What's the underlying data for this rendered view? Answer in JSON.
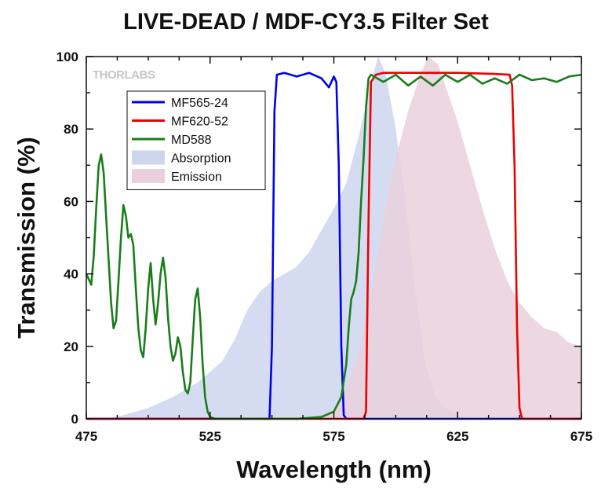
{
  "chart_data": {
    "type": "line",
    "title": "LIVE-DEAD / MDF-CY3.5 Filter Set",
    "xlabel": "Wavelength (nm)",
    "ylabel": "Transmission (%)",
    "xlim": [
      475,
      675
    ],
    "ylim": [
      0,
      100
    ],
    "x_ticks": [
      "475",
      "525",
      "575",
      "625",
      "675"
    ],
    "y_ticks": [
      "0",
      "20",
      "40",
      "60",
      "80",
      "100"
    ],
    "grid": false,
    "legend_position": "upper-left",
    "watermark": "THORLABS",
    "series": [
      {
        "name": "MF565-24",
        "style": "line",
        "color": "#0000ee",
        "points": [
          [
            475,
            0
          ],
          [
            549,
            0
          ],
          [
            550,
            20
          ],
          [
            551,
            85
          ],
          [
            552,
            95
          ],
          [
            555,
            95.5
          ],
          [
            560,
            94.5
          ],
          [
            565,
            95.5
          ],
          [
            570,
            94
          ],
          [
            573,
            91.5
          ],
          [
            575,
            94.5
          ],
          [
            576,
            93
          ],
          [
            577,
            70
          ],
          [
            578,
            20
          ],
          [
            579,
            1
          ],
          [
            580,
            0
          ],
          [
            675,
            0
          ]
        ]
      },
      {
        "name": "MF620-52",
        "style": "line",
        "color": "#ee0000",
        "points": [
          [
            475,
            0
          ],
          [
            587,
            0
          ],
          [
            588,
            2
          ],
          [
            589,
            55
          ],
          [
            590,
            93
          ],
          [
            592,
            95
          ],
          [
            595,
            95.5
          ],
          [
            610,
            95.5
          ],
          [
            625,
            95.5
          ],
          [
            640,
            95.2
          ],
          [
            646,
            95
          ],
          [
            647,
            92
          ],
          [
            648,
            70
          ],
          [
            649,
            25
          ],
          [
            650,
            3
          ],
          [
            651,
            0
          ],
          [
            675,
            0
          ]
        ]
      },
      {
        "name": "MD588",
        "style": "line",
        "color": "#1a7d1a",
        "points": [
          [
            475,
            40
          ],
          [
            477,
            37
          ],
          [
            478,
            45
          ],
          [
            479,
            58
          ],
          [
            480,
            70
          ],
          [
            481,
            73
          ],
          [
            482,
            68
          ],
          [
            483,
            56
          ],
          [
            484,
            44
          ],
          [
            485,
            32
          ],
          [
            486,
            25
          ],
          [
            487,
            27
          ],
          [
            488,
            38
          ],
          [
            489,
            50
          ],
          [
            490,
            59
          ],
          [
            491,
            56
          ],
          [
            492,
            50
          ],
          [
            493,
            51
          ],
          [
            494,
            48
          ],
          [
            495,
            36
          ],
          [
            496,
            25
          ],
          [
            497,
            19
          ],
          [
            498,
            17
          ],
          [
            499,
            25
          ],
          [
            500,
            36
          ],
          [
            501,
            43
          ],
          [
            502,
            33
          ],
          [
            503,
            26
          ],
          [
            504,
            32
          ],
          [
            505,
            40
          ],
          [
            506,
            44.5
          ],
          [
            507,
            39
          ],
          [
            508,
            28
          ],
          [
            509,
            20
          ],
          [
            510,
            16
          ],
          [
            511,
            18
          ],
          [
            512,
            22.5
          ],
          [
            513,
            20
          ],
          [
            514,
            13
          ],
          [
            515,
            8
          ],
          [
            516,
            7
          ],
          [
            517,
            10
          ],
          [
            518,
            22
          ],
          [
            519,
            33
          ],
          [
            520,
            36
          ],
          [
            521,
            28
          ],
          [
            522,
            15
          ],
          [
            523,
            6
          ],
          [
            524,
            2
          ],
          [
            525,
            0.5
          ],
          [
            527,
            0
          ],
          [
            560,
            0
          ],
          [
            570,
            0.5
          ],
          [
            575,
            2
          ],
          [
            578,
            6
          ],
          [
            580,
            15
          ],
          [
            581,
            25
          ],
          [
            582,
            33
          ],
          [
            583,
            35
          ],
          [
            584,
            38
          ],
          [
            585,
            46
          ],
          [
            586,
            60
          ],
          [
            587,
            72
          ],
          [
            588,
            86
          ],
          [
            589,
            94
          ],
          [
            590,
            95
          ],
          [
            595,
            93
          ],
          [
            600,
            95
          ],
          [
            605,
            92
          ],
          [
            610,
            94.5
          ],
          [
            615,
            92
          ],
          [
            620,
            95
          ],
          [
            625,
            93
          ],
          [
            630,
            95
          ],
          [
            635,
            92.5
          ],
          [
            640,
            94
          ],
          [
            645,
            92.5
          ],
          [
            650,
            95
          ],
          [
            655,
            93.5
          ],
          [
            660,
            94
          ],
          [
            665,
            93
          ],
          [
            670,
            94.5
          ],
          [
            675,
            95
          ]
        ]
      },
      {
        "name": "Absorption",
        "style": "area",
        "color": "#ced6ee",
        "points": [
          [
            475,
            0
          ],
          [
            483,
            0
          ],
          [
            490,
            1
          ],
          [
            500,
            3
          ],
          [
            510,
            6
          ],
          [
            520,
            10
          ],
          [
            530,
            16
          ],
          [
            535,
            22
          ],
          [
            540,
            30
          ],
          [
            545,
            35
          ],
          [
            550,
            38
          ],
          [
            555,
            40
          ],
          [
            560,
            42
          ],
          [
            565,
            46
          ],
          [
            570,
            52
          ],
          [
            575,
            58
          ],
          [
            580,
            65
          ],
          [
            585,
            78
          ],
          [
            590,
            93
          ],
          [
            593,
            100
          ],
          [
            596,
            95
          ],
          [
            600,
            80
          ],
          [
            604,
            60
          ],
          [
            608,
            35
          ],
          [
            612,
            15
          ],
          [
            616,
            6
          ],
          [
            620,
            3
          ],
          [
            625,
            1
          ],
          [
            630,
            0
          ],
          [
            675,
            0
          ]
        ]
      },
      {
        "name": "Emission",
        "style": "area",
        "color": "#ead0dc",
        "points": [
          [
            475,
            0
          ],
          [
            570,
            0
          ],
          [
            575,
            2
          ],
          [
            580,
            8
          ],
          [
            585,
            18
          ],
          [
            590,
            35
          ],
          [
            595,
            55
          ],
          [
            600,
            72
          ],
          [
            605,
            85
          ],
          [
            610,
            95
          ],
          [
            613,
            100
          ],
          [
            617,
            98
          ],
          [
            620,
            92
          ],
          [
            625,
            82
          ],
          [
            630,
            70
          ],
          [
            635,
            58
          ],
          [
            640,
            47
          ],
          [
            645,
            38
          ],
          [
            650,
            32
          ],
          [
            655,
            28
          ],
          [
            660,
            25
          ],
          [
            665,
            24
          ],
          [
            670,
            21
          ],
          [
            675,
            20
          ]
        ]
      }
    ]
  }
}
